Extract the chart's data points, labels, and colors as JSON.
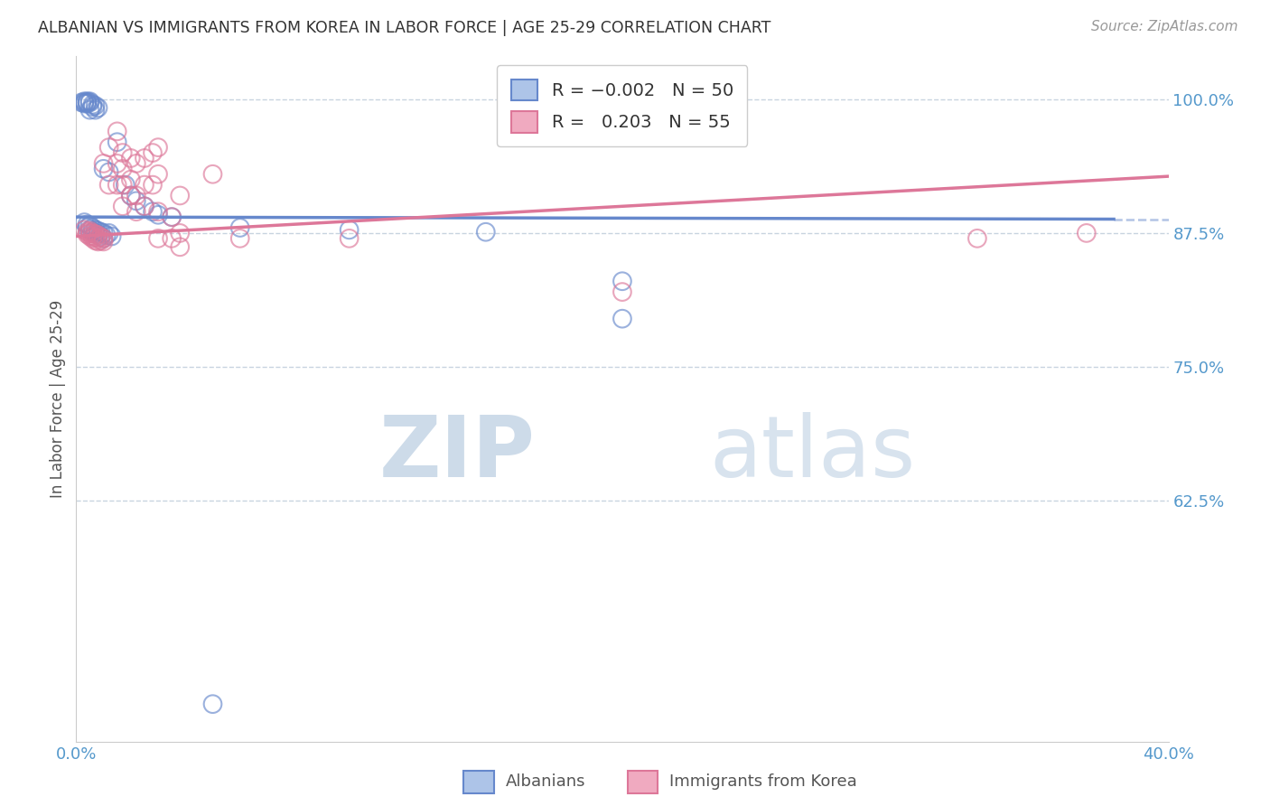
{
  "title": "ALBANIAN VS IMMIGRANTS FROM KOREA IN LABOR FORCE | AGE 25-29 CORRELATION CHART",
  "source": "Source: ZipAtlas.com",
  "ylabel": "In Labor Force | Age 25-29",
  "xlim": [
    0.0,
    0.4
  ],
  "ylim": [
    0.4,
    1.04
  ],
  "yticks": [
    0.625,
    0.75,
    0.875,
    1.0
  ],
  "ytick_labels": [
    "62.5%",
    "75.0%",
    "87.5%",
    "100.0%"
  ],
  "xticks": [
    0.0,
    0.05,
    0.1,
    0.15,
    0.2,
    0.25,
    0.3,
    0.35,
    0.4
  ],
  "xtick_labels": [
    "0.0%",
    "",
    "",
    "",
    "",
    "",
    "",
    "",
    "40.0%"
  ],
  "blue_color": "#6688cc",
  "pink_color": "#dd7799",
  "title_color": "#333333",
  "axis_color": "#5599cc",
  "grid_color": "#c8d4e0",
  "watermark_color": "#d0dce8",
  "blue_scatter": [
    [
      0.002,
      0.997
    ],
    [
      0.003,
      0.998
    ],
    [
      0.003,
      0.997
    ],
    [
      0.003,
      0.996
    ],
    [
      0.004,
      0.998
    ],
    [
      0.004,
      0.997
    ],
    [
      0.004,
      0.996
    ],
    [
      0.005,
      0.998
    ],
    [
      0.005,
      0.997
    ],
    [
      0.005,
      0.99
    ],
    [
      0.006,
      0.995
    ],
    [
      0.006,
      0.993
    ],
    [
      0.007,
      0.994
    ],
    [
      0.007,
      0.99
    ],
    [
      0.008,
      0.992
    ],
    [
      0.003,
      0.885
    ],
    [
      0.004,
      0.883
    ],
    [
      0.004,
      0.88
    ],
    [
      0.005,
      0.882
    ],
    [
      0.005,
      0.878
    ],
    [
      0.006,
      0.88
    ],
    [
      0.006,
      0.876
    ],
    [
      0.007,
      0.878
    ],
    [
      0.007,
      0.875
    ],
    [
      0.008,
      0.877
    ],
    [
      0.008,
      0.874
    ],
    [
      0.009,
      0.876
    ],
    [
      0.009,
      0.872
    ],
    [
      0.01,
      0.875
    ],
    [
      0.01,
      0.87
    ],
    [
      0.011,
      0.873
    ],
    [
      0.012,
      0.875
    ],
    [
      0.013,
      0.872
    ],
    [
      0.01,
      0.935
    ],
    [
      0.012,
      0.932
    ],
    [
      0.015,
      0.96
    ],
    [
      0.018,
      0.92
    ],
    [
      0.02,
      0.91
    ],
    [
      0.022,
      0.905
    ],
    [
      0.025,
      0.9
    ],
    [
      0.028,
      0.895
    ],
    [
      0.03,
      0.892
    ],
    [
      0.035,
      0.89
    ],
    [
      0.06,
      0.88
    ],
    [
      0.1,
      0.878
    ],
    [
      0.15,
      0.876
    ],
    [
      0.2,
      0.83
    ],
    [
      0.2,
      0.795
    ],
    [
      0.05,
      0.435
    ]
  ],
  "pink_scatter": [
    [
      0.003,
      0.878
    ],
    [
      0.004,
      0.876
    ],
    [
      0.004,
      0.874
    ],
    [
      0.005,
      0.877
    ],
    [
      0.005,
      0.875
    ],
    [
      0.005,
      0.872
    ],
    [
      0.006,
      0.875
    ],
    [
      0.006,
      0.872
    ],
    [
      0.006,
      0.87
    ],
    [
      0.007,
      0.874
    ],
    [
      0.007,
      0.871
    ],
    [
      0.007,
      0.868
    ],
    [
      0.008,
      0.873
    ],
    [
      0.008,
      0.87
    ],
    [
      0.008,
      0.867
    ],
    [
      0.009,
      0.871
    ],
    [
      0.009,
      0.868
    ],
    [
      0.01,
      0.87
    ],
    [
      0.01,
      0.867
    ],
    [
      0.01,
      0.94
    ],
    [
      0.012,
      0.955
    ],
    [
      0.012,
      0.92
    ],
    [
      0.015,
      0.97
    ],
    [
      0.015,
      0.94
    ],
    [
      0.015,
      0.92
    ],
    [
      0.017,
      0.95
    ],
    [
      0.017,
      0.935
    ],
    [
      0.017,
      0.92
    ],
    [
      0.017,
      0.9
    ],
    [
      0.02,
      0.945
    ],
    [
      0.02,
      0.925
    ],
    [
      0.02,
      0.91
    ],
    [
      0.022,
      0.94
    ],
    [
      0.022,
      0.91
    ],
    [
      0.022,
      0.895
    ],
    [
      0.025,
      0.945
    ],
    [
      0.025,
      0.92
    ],
    [
      0.025,
      0.9
    ],
    [
      0.028,
      0.95
    ],
    [
      0.028,
      0.92
    ],
    [
      0.03,
      0.955
    ],
    [
      0.03,
      0.93
    ],
    [
      0.03,
      0.895
    ],
    [
      0.03,
      0.87
    ],
    [
      0.035,
      0.89
    ],
    [
      0.035,
      0.87
    ],
    [
      0.038,
      0.91
    ],
    [
      0.038,
      0.875
    ],
    [
      0.038,
      0.862
    ],
    [
      0.05,
      0.93
    ],
    [
      0.06,
      0.87
    ],
    [
      0.1,
      0.87
    ],
    [
      0.2,
      0.82
    ],
    [
      0.33,
      0.87
    ],
    [
      0.37,
      0.875
    ]
  ],
  "blue_line_x": [
    0.0,
    0.38
  ],
  "blue_line_y": [
    0.89,
    0.888
  ],
  "pink_line_x": [
    0.0,
    0.4
  ],
  "pink_line_y": [
    0.872,
    0.928
  ],
  "dashed_line_y": 0.888,
  "dashed_line_x_start": 0.38,
  "dashed_line_x_end": 0.4,
  "background_color": "#ffffff"
}
